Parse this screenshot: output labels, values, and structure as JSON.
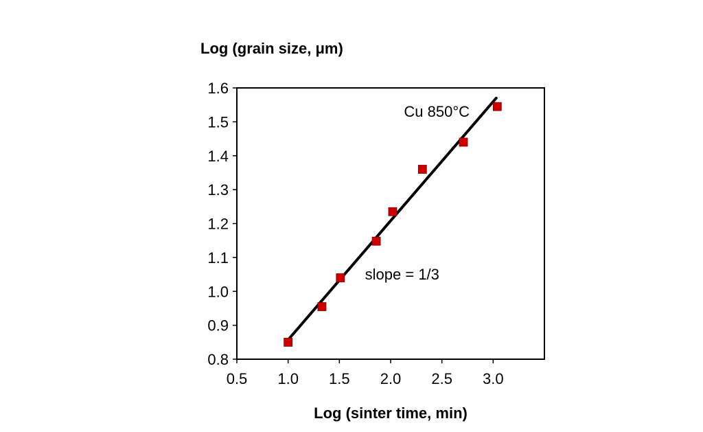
{
  "chart_data": {
    "type": "scatter",
    "xlabel": "Log (sinter time, min)",
    "ylabel": "Log (grain size, μm)",
    "xlim": [
      0.5,
      3.5
    ],
    "ylim": [
      0.8,
      1.6
    ],
    "x_ticks": [
      0.5,
      1.0,
      1.5,
      2.0,
      2.5,
      3.0
    ],
    "x_tick_labels": [
      "0.5",
      "1.0",
      "1.5",
      "2.0",
      "2.5",
      "3.0"
    ],
    "y_ticks": [
      0.8,
      0.9,
      1.0,
      1.1,
      1.2,
      1.3,
      1.4,
      1.5,
      1.6
    ],
    "y_tick_labels": [
      "0.8",
      "0.9",
      "1.0",
      "1.1",
      "1.2",
      "1.3",
      "1.4",
      "1.5",
      "1.6"
    ],
    "grid": false,
    "series": [
      {
        "marker": "square",
        "color": "#cc0000",
        "x": [
          1.0,
          1.33,
          1.51,
          1.86,
          2.02,
          2.31,
          2.71,
          3.04
        ],
        "y": [
          0.85,
          0.955,
          1.04,
          1.148,
          1.235,
          1.36,
          1.44,
          1.545
        ]
      }
    ],
    "fit_line": {
      "color": "#000000",
      "x": [
        1.0,
        3.03
      ],
      "y": [
        0.857,
        1.57
      ]
    },
    "annotations": [
      {
        "text": "Cu 850°C",
        "x": 2.13,
        "y": 1.515
      },
      {
        "text": "slope = 1/3",
        "x": 1.75,
        "y": 1.035
      }
    ]
  }
}
